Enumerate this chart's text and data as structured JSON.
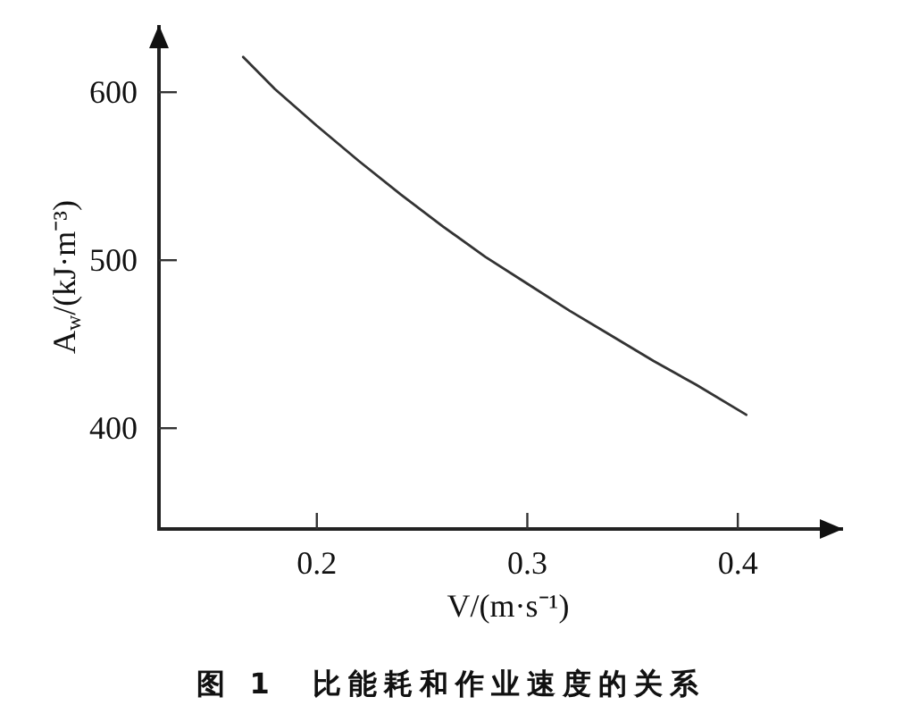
{
  "chart_data": {
    "type": "line",
    "title": "图 1　比能耗和作业速度的关系",
    "xlabel": "V/(m·s⁻¹)",
    "ylabel": "A$_{w}$/(kJ·m⁻³)",
    "x": [
      0.165,
      0.18,
      0.2,
      0.22,
      0.24,
      0.26,
      0.28,
      0.3,
      0.32,
      0.34,
      0.36,
      0.38,
      0.404
    ],
    "values": [
      621,
      602,
      580,
      559,
      539,
      520,
      502,
      486,
      470,
      455,
      440,
      426,
      408
    ],
    "color": "#333333",
    "line_style": "solid",
    "xlim": [
      0.125,
      0.45
    ],
    "ylim": [
      340,
      640
    ],
    "xticks": [
      0.2,
      0.3,
      0.4
    ],
    "yticks": [
      400,
      500,
      600
    ]
  }
}
